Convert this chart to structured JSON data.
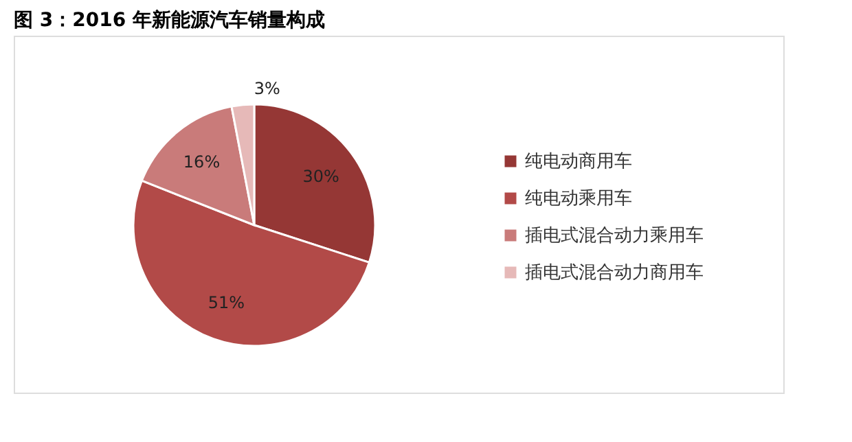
{
  "chart_data": {
    "type": "pie",
    "title": "图 3：2016 年新能源汽车销量构成",
    "categories": [
      "纯电动商用车",
      "纯电动乘用车",
      "插电式混合动力乘用车",
      "插电式混合动力商用车"
    ],
    "values": [
      30,
      51,
      16,
      3
    ],
    "colors": [
      "#953735",
      "#b24a48",
      "#c97b7a",
      "#e6b9b8"
    ],
    "value_labels": [
      "30%",
      "51%",
      "16%",
      "3%"
    ],
    "legend": "right"
  }
}
